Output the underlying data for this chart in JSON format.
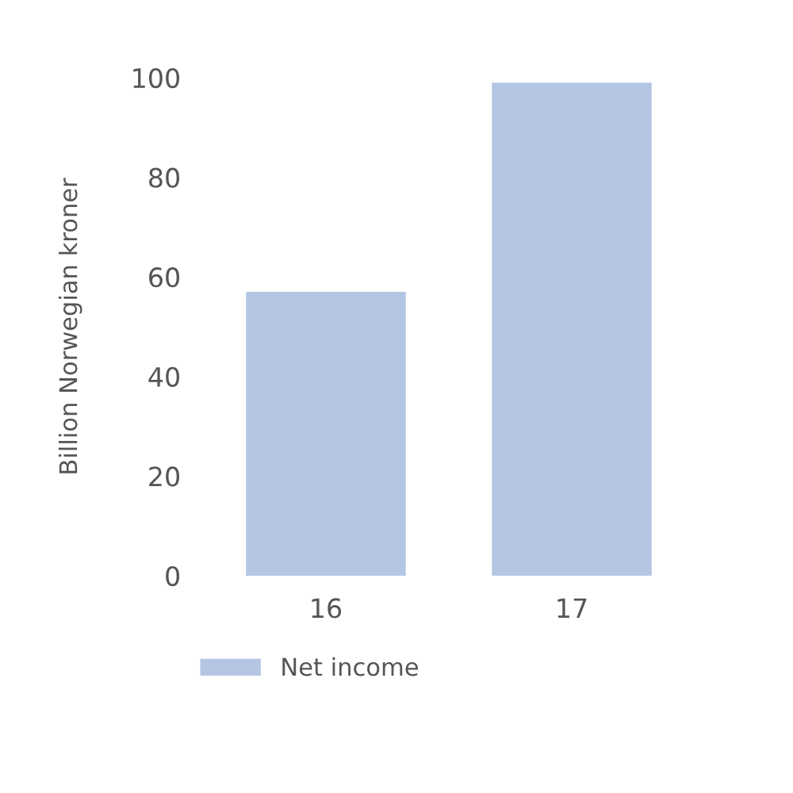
{
  "chart_data": {
    "type": "bar",
    "ylabel": "Billion Norwegian kroner",
    "categories": [
      "16",
      "17"
    ],
    "series": [
      {
        "name": "Net income",
        "color": "#b4c6e4",
        "values": [
          57,
          99
        ]
      }
    ],
    "ylim": [
      0,
      100
    ],
    "yticks": [
      0,
      20,
      40,
      60,
      80,
      100
    ],
    "grid": false,
    "legend": "bottom left"
  }
}
